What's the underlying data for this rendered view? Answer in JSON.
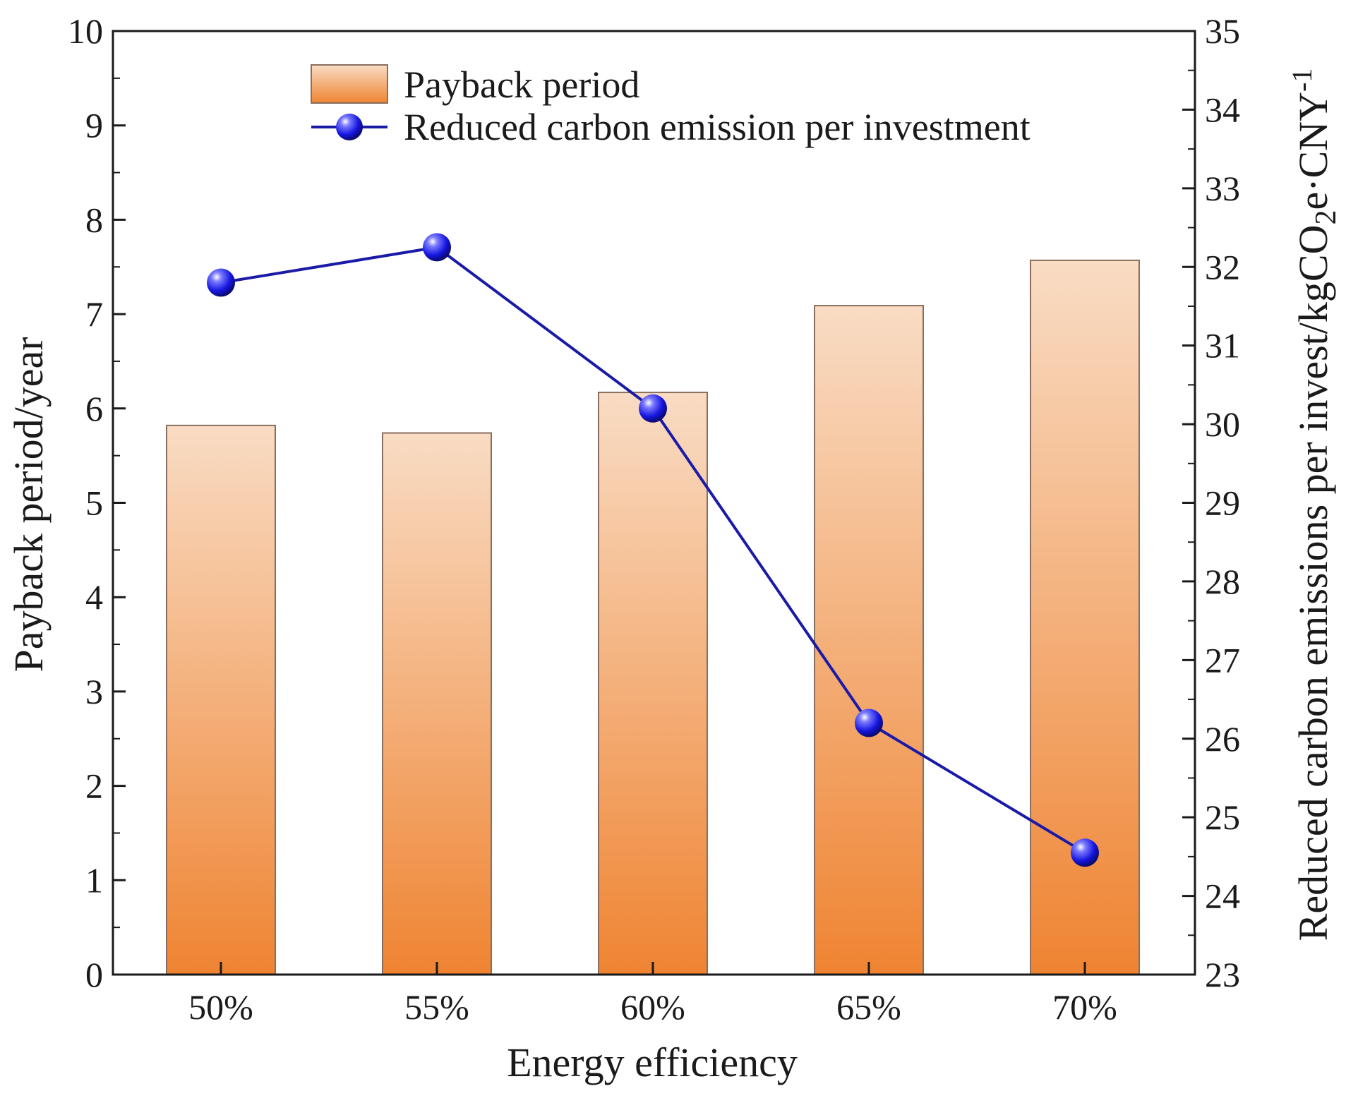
{
  "chart_data": {
    "type": "bar+line",
    "categories": [
      "50%",
      "55%",
      "60%",
      "65%",
      "70%"
    ],
    "xlabel": "Energy efficiency",
    "series": [
      {
        "name": "Payback period",
        "type": "bar",
        "axis": "left",
        "values": [
          5.82,
          5.74,
          6.17,
          7.09,
          7.57
        ],
        "color_top": "#f9dcc4",
        "color_bottom": "#ef8432",
        "edge_color": "#8a6f5e"
      },
      {
        "name": "Reduced carbon emission per investment",
        "type": "line",
        "axis": "right",
        "values": [
          31.8,
          32.25,
          30.2,
          26.2,
          24.55
        ],
        "color": "#1a1aa8",
        "marker_color": "#1515e0"
      }
    ],
    "y_left": {
      "label": "Payback period/year",
      "lim": [
        0,
        10
      ],
      "ticks": [
        "0",
        "1",
        "2",
        "3",
        "4",
        "5",
        "6",
        "7",
        "8",
        "9",
        "10"
      ]
    },
    "y_right": {
      "label_prefix": "Reduced carbon emissions per invest/kgCO",
      "label_sub": "2",
      "label_mid": "e·CNY",
      "label_sup": "-1",
      "lim": [
        23,
        35
      ],
      "ticks": [
        "23",
        "24",
        "25",
        "26",
        "27",
        "28",
        "29",
        "30",
        "31",
        "32",
        "33",
        "34",
        "35"
      ]
    },
    "legend": {
      "position": "top-left",
      "entries": [
        "Payback period",
        "Reduced carbon emission per investment"
      ]
    }
  }
}
